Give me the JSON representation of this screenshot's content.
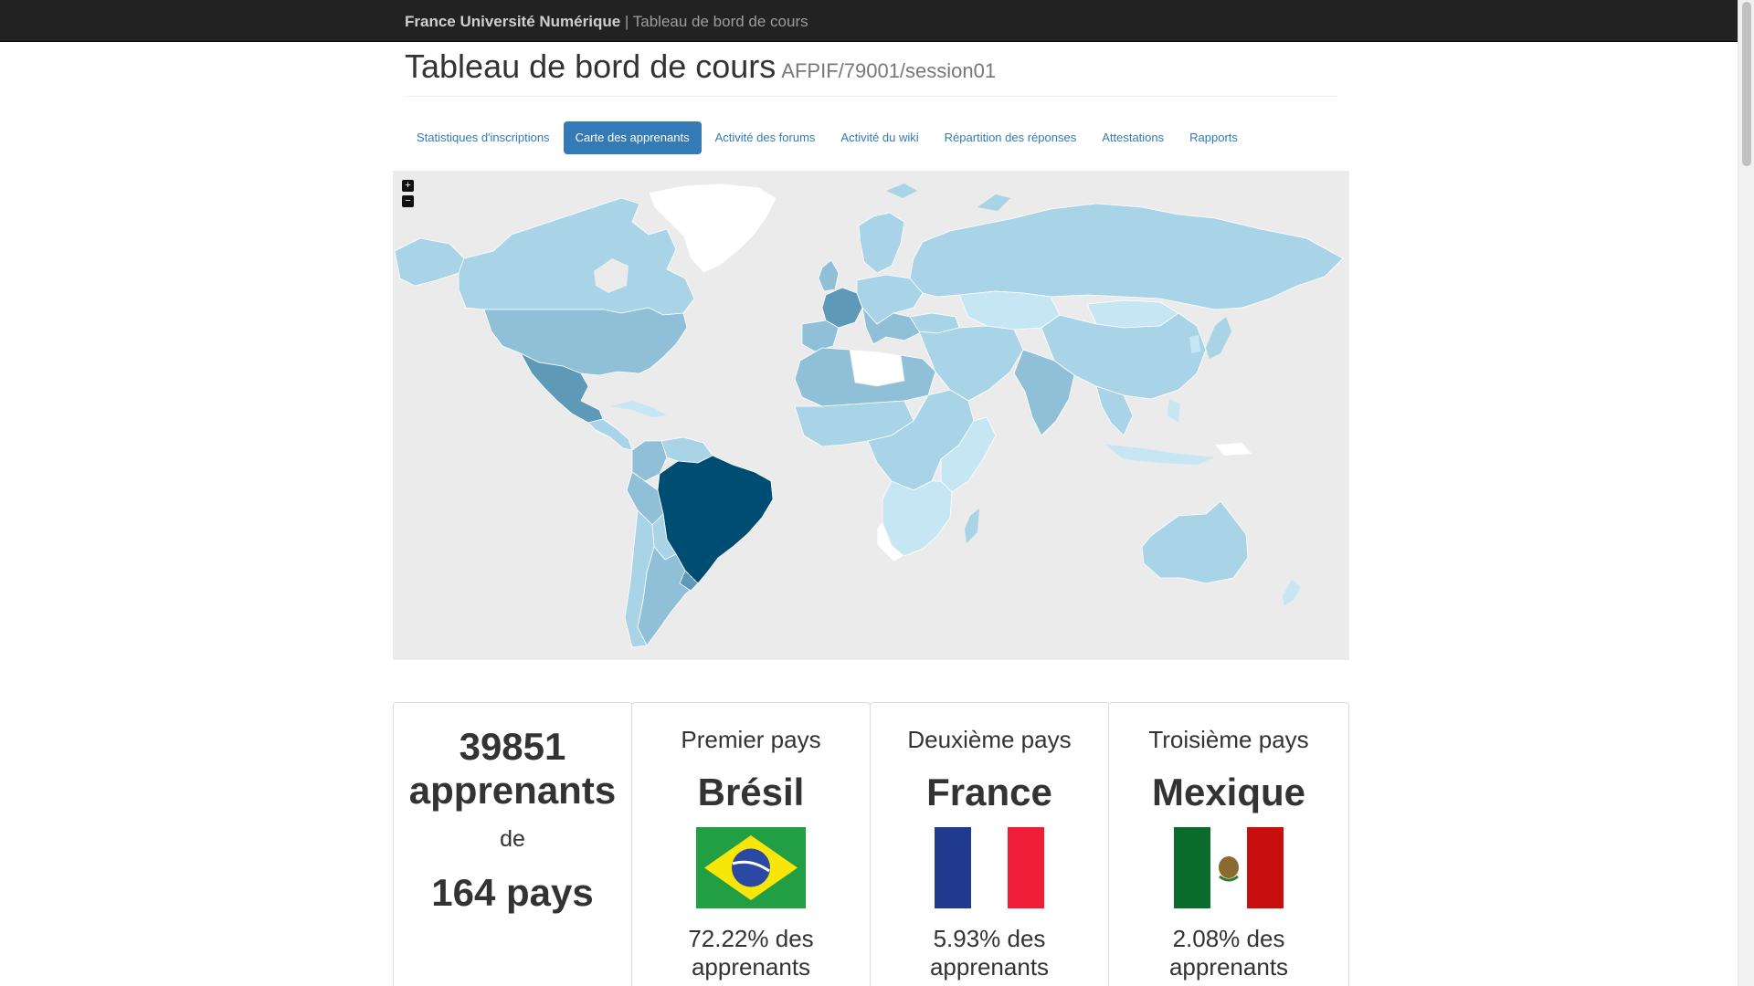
{
  "navbar": {
    "brand": "France Université Numérique",
    "separator": " | ",
    "subtitle": "Tableau de bord de cours"
  },
  "header": {
    "title": "Tableau de bord de cours",
    "course_id": "AFPIF/79001/session01"
  },
  "tabs": [
    {
      "label": "Statistiques d'inscriptions",
      "active": false
    },
    {
      "label": "Carte des apprenants",
      "active": true
    },
    {
      "label": "Activité des forums",
      "active": false
    },
    {
      "label": "Activité du wiki",
      "active": false
    },
    {
      "label": "Répartition des réponses",
      "active": false
    },
    {
      "label": "Attestations",
      "active": false
    },
    {
      "label": "Rapports",
      "active": false
    }
  ],
  "map": {
    "zoom_in_label": "+",
    "zoom_out_label": "−",
    "colors": {
      "background": "#ebebeb",
      "no_data": "#ffffff",
      "level_1": "#c6e6f4",
      "level_2": "#a9d3e6",
      "level_3": "#8fc0d8",
      "level_4": "#5e99b8",
      "top": "#004d73"
    }
  },
  "summary": {
    "learners_count": "39851",
    "learners_label": "apprenants",
    "from_label": "de",
    "countries_count": "164 pays"
  },
  "top_countries": [
    {
      "rank_label": "Premier pays",
      "country": "Brésil",
      "flag_icon": "brazil-flag-icon",
      "pct_line1": "72.22% des",
      "pct_line2": "apprenants",
      "share": 72.22
    },
    {
      "rank_label": "Deuxième pays",
      "country": "France",
      "flag_icon": "france-flag-icon",
      "pct_line1": "5.93% des",
      "pct_line2": "apprenants",
      "share": 5.93
    },
    {
      "rank_label": "Troisième pays",
      "country": "Mexique",
      "flag_icon": "mexico-flag-icon",
      "pct_line1": "2.08% des",
      "pct_line2": "apprenants",
      "share": 2.08
    }
  ]
}
